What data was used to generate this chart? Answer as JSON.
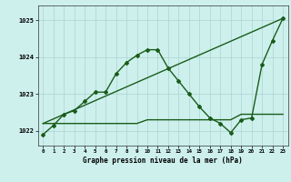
{
  "title": "Graphe pression niveau de la mer (hPa)",
  "bg_color": "#cdf0ed",
  "grid_color": "#aad4d0",
  "line_color": "#1a5c1a",
  "line1_x": [
    0,
    1,
    2,
    3,
    4,
    5,
    6,
    7,
    8,
    9,
    10,
    11,
    12,
    13,
    14,
    15,
    16,
    17,
    18,
    19,
    20,
    21,
    22,
    23
  ],
  "line1_y": [
    1021.9,
    1022.15,
    1022.45,
    1022.55,
    1022.8,
    1023.05,
    1023.05,
    1023.55,
    1023.85,
    1024.05,
    1024.2,
    1024.2,
    1023.7,
    1023.35,
    1023.0,
    1022.65,
    1022.35,
    1022.2,
    1021.95,
    1022.3,
    1022.35,
    1023.8,
    1024.45,
    1025.05
  ],
  "line2_x": [
    0,
    1,
    2,
    3,
    4,
    5,
    6,
    7,
    8,
    9,
    10,
    11,
    12,
    13,
    14,
    15,
    16,
    17,
    18,
    19,
    20,
    21,
    22,
    23
  ],
  "line2_y": [
    1022.2,
    1022.2,
    1022.2,
    1022.2,
    1022.2,
    1022.2,
    1022.2,
    1022.2,
    1022.2,
    1022.2,
    1022.3,
    1022.3,
    1022.3,
    1022.3,
    1022.3,
    1022.3,
    1022.3,
    1022.3,
    1022.3,
    1022.45,
    1022.45,
    1022.45,
    1022.45,
    1022.45
  ],
  "line3_x": [
    0,
    23
  ],
  "line3_y": [
    1022.2,
    1025.05
  ],
  "ylim": [
    1021.6,
    1025.4
  ],
  "yticks": [
    1022,
    1023,
    1024,
    1025
  ],
  "xticks": [
    0,
    1,
    2,
    3,
    4,
    5,
    6,
    7,
    8,
    9,
    10,
    11,
    12,
    13,
    14,
    15,
    16,
    17,
    18,
    19,
    20,
    21,
    22,
    23
  ],
  "figw": 3.2,
  "figh": 2.0,
  "dpi": 100
}
